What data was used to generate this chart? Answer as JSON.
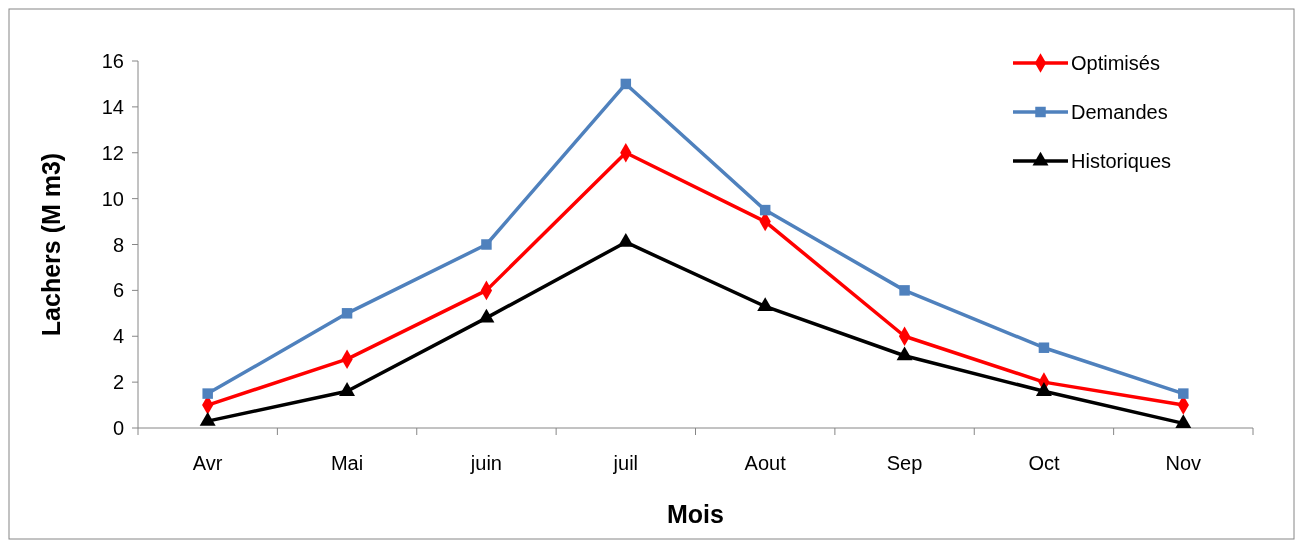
{
  "chart_data": {
    "type": "line",
    "xlabel": "Mois",
    "ylabel": "Lachers (M m3)",
    "categories": [
      "Avr",
      "Mai",
      "juin",
      "juil",
      "Aout",
      "Sep",
      "Oct",
      "Nov"
    ],
    "series": [
      {
        "name": "Optimisés",
        "color": "#ff0000",
        "marker": "diamond",
        "values": [
          1,
          3,
          6,
          12,
          9,
          4,
          2,
          1
        ]
      },
      {
        "name": "Demandes",
        "color": "#4f81bd",
        "marker": "square",
        "values": [
          1.5,
          5,
          8,
          15,
          9.5,
          6,
          3.5,
          1.5
        ]
      },
      {
        "name": "Historiques",
        "color": "#000000",
        "marker": "triangle",
        "values": [
          0.3,
          1.6,
          4.8,
          8.1,
          5.3,
          3.15,
          1.6,
          0.2
        ]
      }
    ],
    "ylim": [
      0,
      16
    ],
    "yticks": [
      0,
      2,
      4,
      6,
      8,
      10,
      12,
      14,
      16
    ],
    "grid": false,
    "legend": "top right",
    "line_style": "solid"
  }
}
